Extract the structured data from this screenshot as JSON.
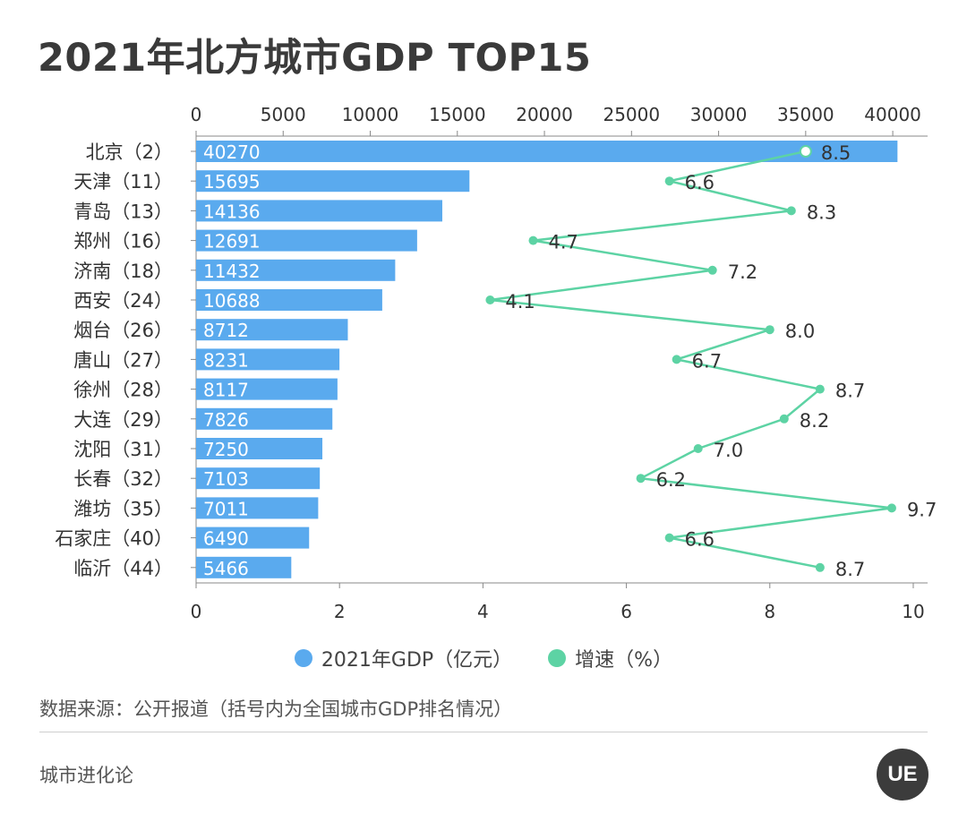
{
  "title": "2021年北方城市GDP TOP15",
  "legend": {
    "gdp": "2021年GDP（亿元）",
    "growth": "增速（%）"
  },
  "source": "数据来源：公开报道（括号内为全国城市GDP排名情况）",
  "brand": "城市进化论",
  "logo_text": "UE",
  "colors": {
    "bar": "#5aaaee",
    "line": "#5dd3a4",
    "axis": "#999999",
    "text": "#333333"
  },
  "chart_data": {
    "type": "bar",
    "categories": [
      "北京（2）",
      "天津（11）",
      "青岛（13）",
      "郑州（16）",
      "济南（18）",
      "西安（24）",
      "烟台（26）",
      "唐山（27）",
      "徐州（28）",
      "大连（29）",
      "沈阳（31）",
      "长春（32）",
      "潍坊（35）",
      "石家庄（40）",
      "临沂（44）"
    ],
    "series": [
      {
        "name": "2021年GDP（亿元）",
        "type": "bar",
        "axis": "top",
        "values": [
          40270,
          15695,
          14136,
          12691,
          11432,
          10688,
          8712,
          8231,
          8117,
          7826,
          7250,
          7103,
          7011,
          6490,
          5466
        ]
      },
      {
        "name": "增速（%）",
        "type": "line",
        "axis": "bottom",
        "values": [
          8.5,
          6.6,
          8.3,
          4.7,
          7.2,
          4.1,
          8.0,
          6.7,
          8.7,
          8.2,
          7.0,
          6.2,
          9.7,
          6.6,
          8.7
        ]
      }
    ],
    "top_axis": {
      "ticks": [
        0,
        5000,
        10000,
        15000,
        20000,
        25000,
        30000,
        35000,
        40000
      ],
      "range": [
        0,
        42000
      ]
    },
    "bottom_axis": {
      "ticks": [
        0,
        2,
        4,
        6,
        8,
        10
      ],
      "range": [
        0,
        10.2
      ]
    },
    "orientation": "horizontal",
    "legend_position": "bottom"
  }
}
